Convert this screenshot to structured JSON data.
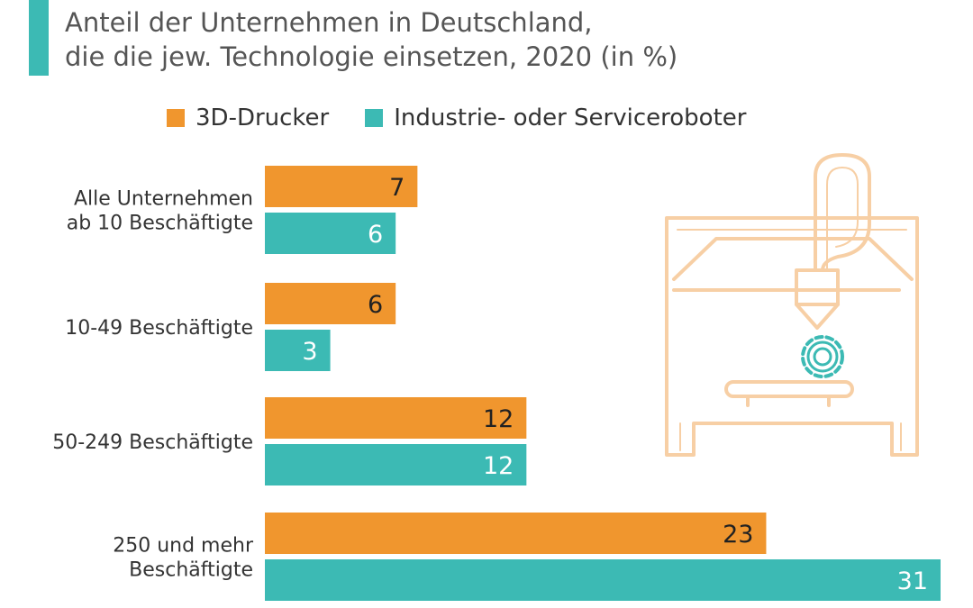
{
  "title_lines": [
    "Anteil der Unternehmen in Deutschland,",
    "die die jew. Technologie einsetzen, 2020 (in %)"
  ],
  "colors": {
    "orange": "#F0962E",
    "teal": "#3CBAB4",
    "accent": "#3CBAB4",
    "illustration": "#F7CFA5"
  },
  "illustration": {
    "icon": "3d-printer-icon"
  },
  "chart_data": {
    "type": "bar",
    "orientation": "horizontal",
    "categories": [
      [
        "Alle Unternehmen",
        "ab 10 Beschäftigte"
      ],
      [
        "10-49 Beschäftigte"
      ],
      [
        "50-249 Beschäftigte"
      ],
      [
        "250 und mehr",
        "Beschäftigte"
      ]
    ],
    "series": [
      {
        "name": "3D-Drucker",
        "color": "#F0962E",
        "label_color": "#222222",
        "values": [
          7,
          6,
          12,
          23
        ]
      },
      {
        "name": "Industrie- oder Serviceroboter",
        "color": "#3CBAB4",
        "label_color": "#ffffff",
        "values": [
          6,
          3,
          12,
          31
        ]
      }
    ],
    "xlim": [
      0,
      31
    ],
    "grid": false,
    "legend": "top",
    "data_labels": true
  }
}
